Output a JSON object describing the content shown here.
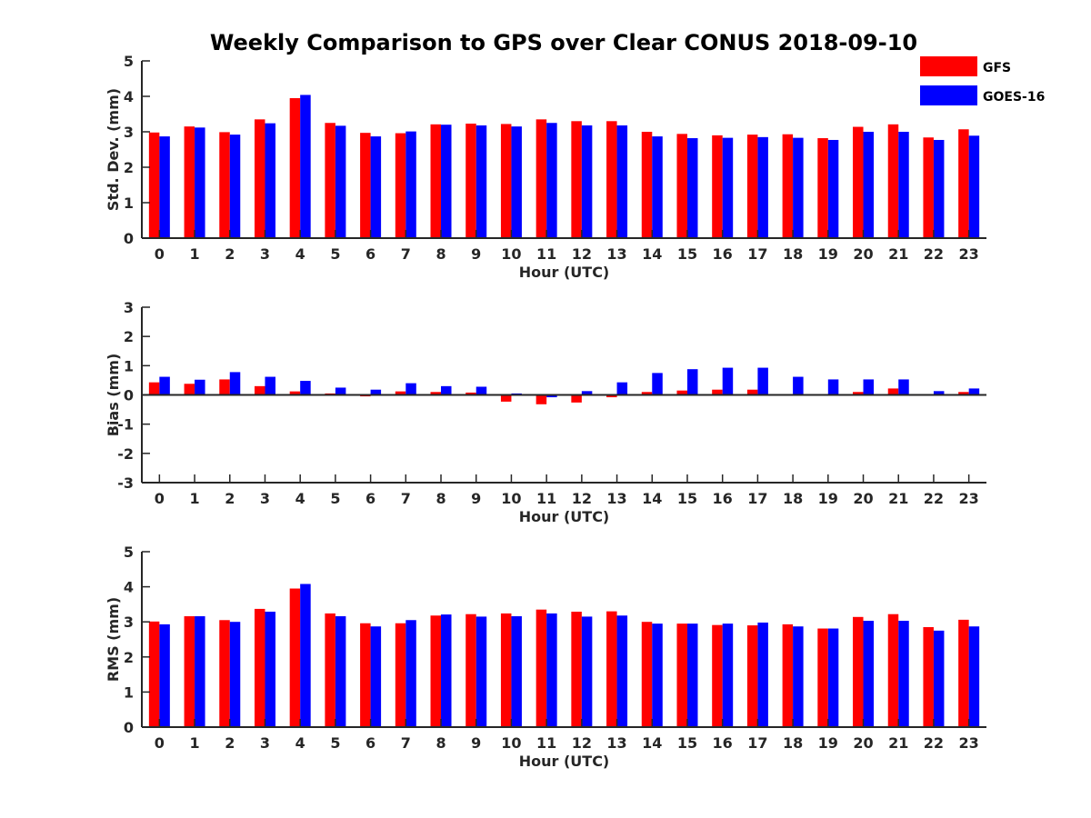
{
  "title": "Weekly Comparison to GPS over Clear CONUS 2018-09-10",
  "legend": {
    "position": "top-right",
    "items": [
      {
        "label": "GFS",
        "color": "#ff0000"
      },
      {
        "label": "GOES-16",
        "color": "#0000ff"
      }
    ]
  },
  "chart_data": [
    {
      "type": "bar",
      "xlabel": "Hour (UTC)",
      "ylabel": "Std. Dev. (mm)",
      "ylim": [
        0,
        5
      ],
      "yticks": [
        0,
        1,
        2,
        3,
        4,
        5
      ],
      "categories": [
        "0",
        "1",
        "2",
        "3",
        "4",
        "5",
        "6",
        "7",
        "8",
        "9",
        "10",
        "11",
        "12",
        "13",
        "14",
        "15",
        "16",
        "17",
        "18",
        "19",
        "20",
        "21",
        "22",
        "23"
      ],
      "series": [
        {
          "name": "GFS",
          "color": "#ff0000",
          "values": [
            2.98,
            3.15,
            2.99,
            3.35,
            3.95,
            3.25,
            2.97,
            2.96,
            3.21,
            3.23,
            3.22,
            3.35,
            3.3,
            3.3,
            3.0,
            2.94,
            2.9,
            2.92,
            2.93,
            2.82,
            3.14,
            3.21,
            2.84,
            3.07
          ]
        },
        {
          "name": "GOES-16",
          "color": "#0000ff",
          "values": [
            2.87,
            3.12,
            2.92,
            3.24,
            4.04,
            3.17,
            2.87,
            3.01,
            3.2,
            3.18,
            3.15,
            3.25,
            3.18,
            3.18,
            2.87,
            2.82,
            2.83,
            2.85,
            2.83,
            2.77,
            3.0,
            3.0,
            2.77,
            2.89
          ]
        }
      ]
    },
    {
      "type": "bar",
      "xlabel": "Hour (UTC)",
      "ylabel": "Bias (mm)",
      "ylim": [
        -3,
        3
      ],
      "yticks": [
        -3,
        -2,
        -1,
        0,
        1,
        2,
        3
      ],
      "categories": [
        "0",
        "1",
        "2",
        "3",
        "4",
        "5",
        "6",
        "7",
        "8",
        "9",
        "10",
        "11",
        "12",
        "13",
        "14",
        "15",
        "16",
        "17",
        "18",
        "19",
        "20",
        "21",
        "22",
        "23"
      ],
      "series": [
        {
          "name": "GFS",
          "color": "#ff0000",
          "values": [
            0.43,
            0.38,
            0.53,
            0.3,
            0.12,
            0.05,
            -0.05,
            0.12,
            0.1,
            0.08,
            -0.23,
            -0.32,
            -0.26,
            -0.08,
            0.1,
            0.15,
            0.18,
            0.18,
            0.03,
            0.02,
            0.1,
            0.22,
            0.0,
            0.1
          ]
        },
        {
          "name": "GOES-16",
          "color": "#0000ff",
          "values": [
            0.62,
            0.52,
            0.78,
            0.62,
            0.48,
            0.25,
            0.18,
            0.4,
            0.3,
            0.28,
            0.05,
            -0.08,
            0.13,
            0.43,
            0.75,
            0.88,
            0.93,
            0.93,
            0.62,
            0.53,
            0.53,
            0.53,
            0.13,
            0.22
          ]
        }
      ]
    },
    {
      "type": "bar",
      "xlabel": "Hour (UTC)",
      "ylabel": "RMS (mm)",
      "ylim": [
        0,
        5
      ],
      "yticks": [
        0,
        1,
        2,
        3,
        4,
        5
      ],
      "categories": [
        "0",
        "1",
        "2",
        "3",
        "4",
        "5",
        "6",
        "7",
        "8",
        "9",
        "10",
        "11",
        "12",
        "13",
        "14",
        "15",
        "16",
        "17",
        "18",
        "19",
        "20",
        "21",
        "22",
        "23"
      ],
      "series": [
        {
          "name": "GFS",
          "color": "#ff0000",
          "values": [
            3.01,
            3.16,
            3.05,
            3.37,
            3.95,
            3.24,
            2.96,
            2.96,
            3.18,
            3.22,
            3.24,
            3.35,
            3.29,
            3.3,
            3.0,
            2.95,
            2.91,
            2.9,
            2.93,
            2.81,
            3.14,
            3.22,
            2.85,
            3.06
          ]
        },
        {
          "name": "GOES-16",
          "color": "#0000ff",
          "values": [
            2.93,
            3.16,
            3.0,
            3.29,
            4.08,
            3.16,
            2.87,
            3.05,
            3.21,
            3.15,
            3.16,
            3.24,
            3.15,
            3.18,
            2.95,
            2.95,
            2.95,
            2.98,
            2.87,
            2.81,
            3.03,
            3.03,
            2.75,
            2.87
          ]
        }
      ]
    }
  ]
}
